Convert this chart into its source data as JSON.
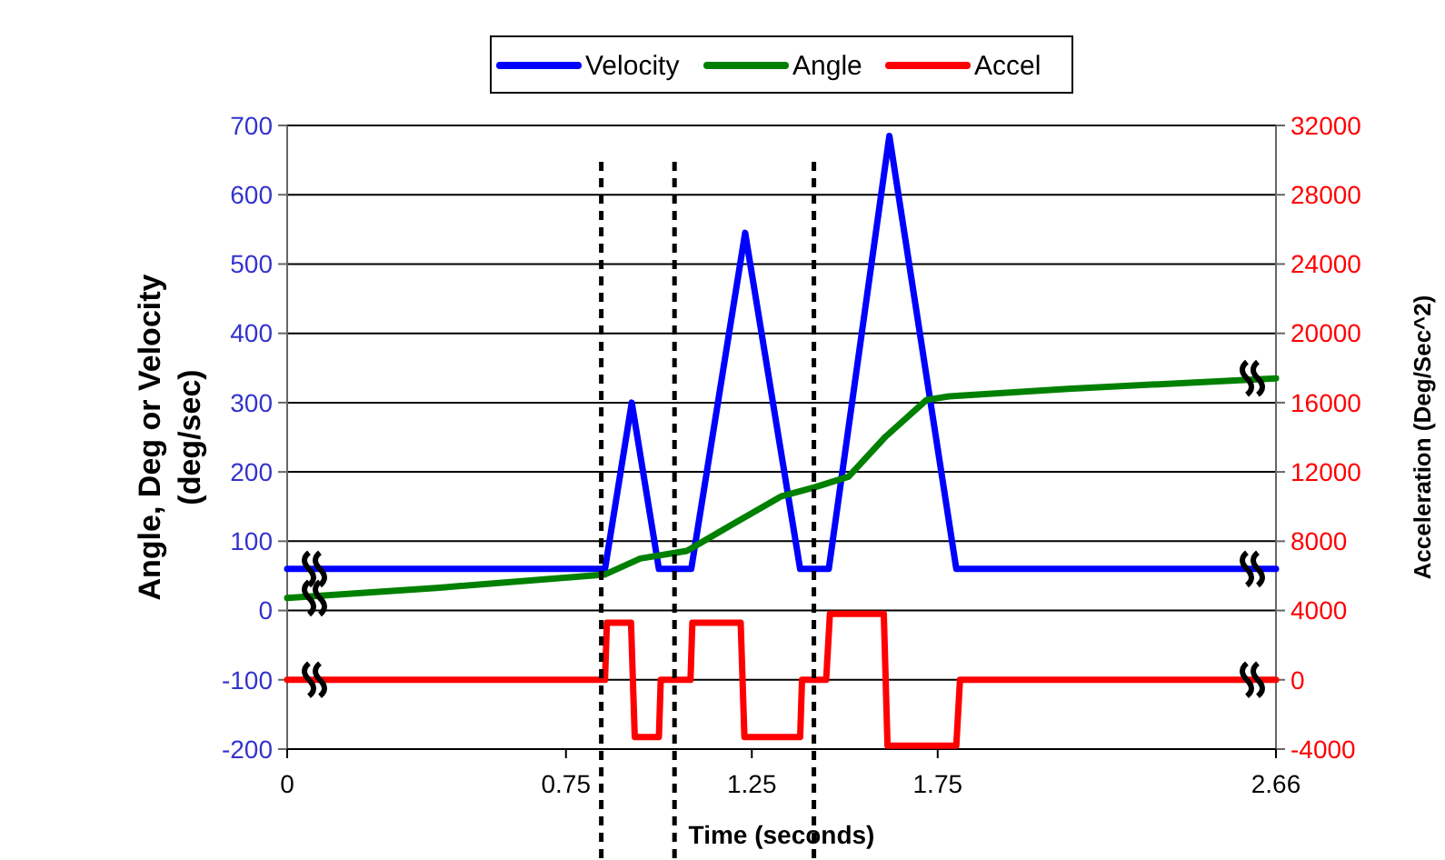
{
  "chart_data": {
    "type": "line",
    "xlabel": "Time (seconds)",
    "ylabel": "Angle, Deg or Velocity\n(deg/sec)",
    "y2label": "Acceleration (Deg/Sec^2)",
    "xlim": [
      0,
      2.66
    ],
    "xticks": [
      0,
      0.75,
      1.25,
      1.75,
      2.66
    ],
    "ylim": [
      -200,
      700
    ],
    "yticks": [
      -200,
      -100,
      0,
      100,
      200,
      300,
      400,
      500,
      600,
      700
    ],
    "y2lim": [
      -4000,
      32000
    ],
    "y2ticks": [
      -4000,
      0,
      4000,
      8000,
      12000,
      16000,
      20000,
      24000,
      28000,
      32000
    ],
    "grid": "y",
    "legend": "top",
    "marker": "none",
    "line_style": "solid",
    "series": [
      {
        "name": "Velocity",
        "color": "#0000ff",
        "x": [
          0,
          0.855,
          0.927,
          1.0,
          1.087,
          1.232,
          1.38,
          1.457,
          1.62,
          1.8,
          2.66
        ],
        "values": [
          60,
          60,
          300,
          60,
          60,
          545,
          60,
          60,
          685,
          60,
          60
        ]
      },
      {
        "name": "Angle",
        "color": "#008000",
        "x": [
          0,
          0.41,
          0.855,
          0.95,
          1.075,
          1.2,
          1.33,
          1.42,
          1.51,
          1.61,
          1.72,
          1.78,
          2.1,
          2.66
        ],
        "values": [
          18,
          33,
          52,
          75,
          86,
          125,
          165,
          178,
          193,
          251,
          304,
          309,
          320,
          335
        ]
      },
      {
        "name": "Accel",
        "color": "#ff0000",
        "axis": "y2",
        "x": [
          0,
          0.855,
          0.86,
          0.925,
          0.935,
          1.0,
          1.005,
          1.085,
          1.09,
          1.22,
          1.23,
          1.38,
          1.385,
          1.45,
          1.46,
          1.605,
          1.615,
          1.8,
          1.81,
          2.66
        ],
        "values": [
          0,
          0,
          3300,
          3300,
          -3300,
          -3300,
          0,
          0,
          3300,
          3300,
          -3300,
          -3300,
          0,
          0,
          3800,
          3800,
          -3800,
          -3800,
          0,
          0
        ]
      }
    ],
    "ref_lines": [
      {
        "axis": "x",
        "value": 0.845,
        "line_style": "dashed",
        "color": "#000000"
      },
      {
        "axis": "x",
        "value": 1.042,
        "line_style": "dashed",
        "color": "#000000"
      },
      {
        "axis": "x",
        "value": 1.417,
        "line_style": "dashed",
        "color": "#000000"
      }
    ]
  }
}
